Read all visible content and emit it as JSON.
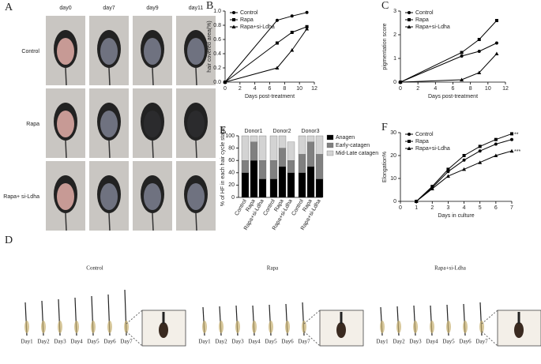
{
  "figure": {
    "panel_a": {
      "label": "A",
      "days": [
        "day0",
        "day7",
        "day9",
        "day11"
      ],
      "rows": [
        "Control",
        "Rapa",
        "Rapa+ si-Ldha"
      ]
    },
    "panel_d": {
      "label": "D",
      "groups": [
        "Control",
        "Rapa",
        "Rapa+si-Ldha"
      ],
      "days": [
        "Day1",
        "Day2",
        "Day3",
        "Day4",
        "Day5",
        "Day6",
        "Day7"
      ]
    }
  },
  "chart_data": [
    {
      "type": "line",
      "panel_label": "B",
      "xlabel": "Days post-treatment",
      "ylabel": "hair covered area(%)",
      "x": [
        0,
        7,
        9,
        11
      ],
      "xlim": [
        0,
        12
      ],
      "xticks": [
        0,
        2,
        4,
        6,
        8,
        10,
        12
      ],
      "ylim": [
        0,
        1.0
      ],
      "yticks": [
        {
          "value": 0,
          "label": "0.0"
        },
        {
          "value": 0.2,
          "label": "0.2"
        },
        {
          "value": 0.4,
          "label": "0.4"
        },
        {
          "value": 0.6,
          "label": "0.6"
        },
        {
          "value": 0.8,
          "label": "0.8"
        },
        {
          "value": 1.0,
          "label": "1.0"
        }
      ],
      "series": [
        {
          "name": "Control",
          "color": "#000000",
          "marker": "circle",
          "values": [
            0,
            0.87,
            0.93,
            0.98
          ]
        },
        {
          "name": "Rapa",
          "color": "#000000",
          "marker": "square",
          "values": [
            0,
            0.55,
            0.7,
            0.78
          ]
        },
        {
          "name": "Rapa+si-Ldha",
          "color": "#000000",
          "marker": "triangle",
          "values": [
            0,
            0.2,
            0.45,
            0.75
          ]
        }
      ]
    },
    {
      "type": "line",
      "panel_label": "C",
      "xlabel": "Days post-treatment",
      "ylabel": "pigmentation score",
      "x": [
        0,
        7,
        9,
        11
      ],
      "xlim": [
        0,
        12
      ],
      "xticks": [
        0,
        2,
        4,
        6,
        8,
        10,
        12
      ],
      "ylim": [
        0,
        3
      ],
      "yticks": [
        0,
        1,
        2,
        3
      ],
      "series": [
        {
          "name": "Control",
          "color": "#000000",
          "marker": "circle",
          "values": [
            0,
            1.1,
            1.3,
            1.65
          ]
        },
        {
          "name": "Rapa",
          "color": "#000000",
          "marker": "square",
          "values": [
            0,
            1.25,
            1.8,
            2.6
          ]
        },
        {
          "name": "Rapa+si-Ldha",
          "color": "#000000",
          "marker": "triangle",
          "values": [
            0,
            0.1,
            0.4,
            1.2
          ]
        }
      ]
    },
    {
      "type": "stacked_bar",
      "panel_label": "E",
      "ylabel": "% of HF in each hair cycle stage",
      "groups": [
        "Donor1",
        "Donor2",
        "Donor3"
      ],
      "categories": [
        "Control",
        "Rapa",
        "Rapa+si-Ldha",
        "Control",
        "Rapa",
        "Rapa+si-Ldha",
        "Control",
        "Rapa",
        "Rapa+si-Ldha"
      ],
      "ylim": [
        0,
        100
      ],
      "yticks": [
        0,
        20,
        40,
        60,
        80,
        100
      ],
      "series": [
        {
          "name": "Anagen",
          "color": "#000000",
          "values": [
            40,
            60,
            30,
            30,
            50,
            40,
            40,
            50,
            30
          ]
        },
        {
          "name": "Early-catagen",
          "color": "#808080",
          "values": [
            20,
            30,
            30,
            30,
            30,
            20,
            30,
            40,
            40
          ]
        },
        {
          "name": "Mid-Late catagen",
          "color": "#d3d3d3",
          "values": [
            40,
            10,
            40,
            40,
            20,
            30,
            30,
            10,
            30
          ]
        }
      ]
    },
    {
      "type": "line",
      "panel_label": "F",
      "xlabel": "Days in culture",
      "ylabel": "Elongation%",
      "x": [
        1,
        2,
        3,
        4,
        5,
        6,
        7
      ],
      "xlim": [
        0,
        7
      ],
      "xticks": [
        0,
        1,
        2,
        3,
        4,
        5,
        6,
        7
      ],
      "ylim": [
        0,
        30
      ],
      "yticks": [
        0,
        10,
        20,
        30
      ],
      "annotations": [
        "**",
        "***"
      ],
      "series": [
        {
          "name": "Control",
          "color": "#000000",
          "marker": "circle",
          "values": [
            0,
            6,
            13,
            18,
            22,
            25,
            27
          ]
        },
        {
          "name": "Rapa",
          "color": "#000000",
          "marker": "square",
          "values": [
            0,
            6.5,
            14,
            20,
            24,
            27,
            29.5
          ]
        },
        {
          "name": "Rapa+si-Ldha",
          "color": "#000000",
          "marker": "triangle",
          "values": [
            0,
            5.5,
            11,
            14,
            17,
            20,
            22
          ]
        }
      ]
    }
  ]
}
